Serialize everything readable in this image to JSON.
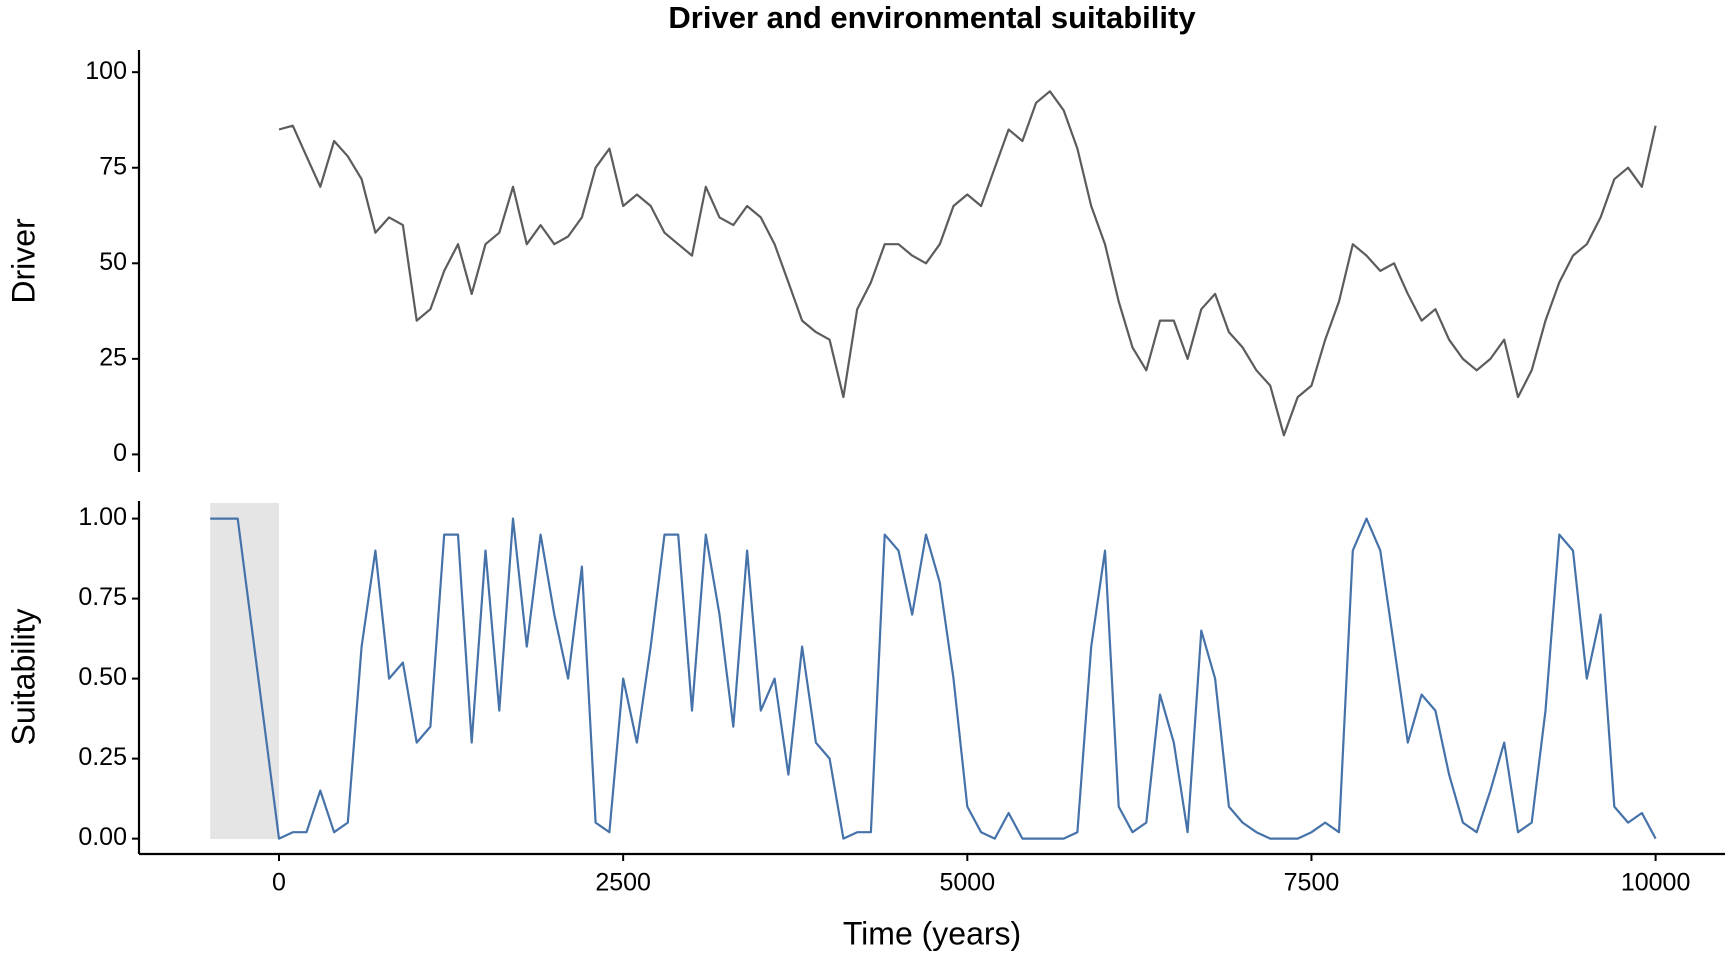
{
  "chart_data": [
    {
      "type": "line",
      "title": "Driver and environmental suitability",
      "ylabel": "Driver",
      "color": "#5c5c5c",
      "xlim": [
        -1017,
        10504
      ],
      "ylim": [
        -4.6,
        105.8
      ],
      "yticks": [
        0,
        25,
        50,
        75,
        100
      ],
      "x": [
        0,
        100,
        200,
        300,
        400,
        500,
        600,
        700,
        800,
        900,
        1000,
        1100,
        1200,
        1300,
        1400,
        1500,
        1600,
        1700,
        1800,
        1900,
        2000,
        2100,
        2200,
        2300,
        2400,
        2500,
        2600,
        2700,
        2800,
        2900,
        3000,
        3100,
        3200,
        3300,
        3400,
        3500,
        3600,
        3700,
        3800,
        3900,
        4000,
        4100,
        4200,
        4300,
        4400,
        4500,
        4600,
        4700,
        4800,
        4900,
        5000,
        5100,
        5200,
        5300,
        5400,
        5500,
        5600,
        5700,
        5800,
        5900,
        6000,
        6100,
        6200,
        6300,
        6400,
        6500,
        6600,
        6700,
        6800,
        6900,
        7000,
        7100,
        7200,
        7300,
        7400,
        7500,
        7600,
        7700,
        7800,
        7900,
        8000,
        8100,
        8200,
        8300,
        8400,
        8500,
        8600,
        8700,
        8800,
        8900,
        9000,
        9100,
        9200,
        9300,
        9400,
        9500,
        9600,
        9700,
        9800,
        9900,
        10000
      ],
      "values": [
        85,
        86,
        78,
        70,
        82,
        78,
        72,
        58,
        62,
        60,
        35,
        38,
        48,
        55,
        42,
        55,
        58,
        70,
        55,
        60,
        55,
        57,
        62,
        75,
        80,
        65,
        68,
        65,
        58,
        55,
        52,
        70,
        62,
        60,
        65,
        62,
        55,
        45,
        35,
        32,
        30,
        15,
        38,
        45,
        55,
        55,
        52,
        50,
        55,
        65,
        68,
        65,
        75,
        85,
        82,
        92,
        95,
        90,
        80,
        65,
        55,
        40,
        28,
        22,
        35,
        35,
        25,
        38,
        42,
        32,
        28,
        22,
        18,
        5,
        15,
        18,
        30,
        40,
        55,
        52,
        48,
        50,
        42,
        35,
        38,
        30,
        25,
        22,
        25,
        30,
        15,
        22,
        35,
        45,
        52,
        55,
        62,
        72,
        75,
        70,
        86
      ]
    },
    {
      "type": "line",
      "ylabel": "Suitability",
      "xlabel": "Time (years)",
      "color": "#4672aa",
      "xlim": [
        -1017,
        10504
      ],
      "ylim": [
        -0.048,
        1.055
      ],
      "xticks": [
        0,
        2500,
        5000,
        7500,
        10000
      ],
      "yticks": [
        {
          "value": 0,
          "label": "0.00"
        },
        {
          "value": 0.25,
          "label": "0.25"
        },
        {
          "value": 0.5,
          "label": "0.50"
        },
        {
          "value": 0.75,
          "label": "0.75"
        },
        {
          "value": 1,
          "label": "1.00"
        }
      ],
      "shade_x": [
        -500,
        0
      ],
      "shade_color": "#e5e5e5",
      "x": [
        -500,
        -300,
        0,
        100,
        200,
        300,
        400,
        500,
        600,
        700,
        800,
        900,
        1000,
        1100,
        1200,
        1300,
        1400,
        1500,
        1600,
        1700,
        1800,
        1900,
        2000,
        2100,
        2200,
        2300,
        2400,
        2500,
        2600,
        2700,
        2800,
        2900,
        3000,
        3100,
        3200,
        3300,
        3400,
        3500,
        3600,
        3700,
        3800,
        3900,
        4000,
        4100,
        4200,
        4300,
        4400,
        4500,
        4600,
        4700,
        4800,
        4900,
        5000,
        5100,
        5200,
        5300,
        5400,
        5500,
        5600,
        5700,
        5800,
        5900,
        6000,
        6100,
        6200,
        6300,
        6400,
        6500,
        6600,
        6700,
        6800,
        6900,
        7000,
        7100,
        7200,
        7300,
        7400,
        7500,
        7600,
        7700,
        7800,
        7900,
        8000,
        8100,
        8200,
        8300,
        8400,
        8500,
        8600,
        8700,
        8800,
        8900,
        9000,
        9100,
        9200,
        9300,
        9400,
        9500,
        9600,
        9700,
        9800,
        9900,
        10000
      ],
      "values": [
        1,
        1,
        0,
        0.02,
        0.02,
        0.15,
        0.02,
        0.05,
        0.6,
        0.9,
        0.5,
        0.55,
        0.3,
        0.35,
        0.95,
        0.95,
        0.3,
        0.9,
        0.4,
        1,
        0.6,
        0.95,
        0.7,
        0.5,
        0.85,
        0.05,
        0.02,
        0.5,
        0.3,
        0.6,
        0.95,
        0.95,
        0.4,
        0.95,
        0.7,
        0.35,
        0.9,
        0.4,
        0.5,
        0.2,
        0.6,
        0.3,
        0.25,
        0,
        0.02,
        0.02,
        0.95,
        0.9,
        0.7,
        0.95,
        0.8,
        0.5,
        0.1,
        0.02,
        0,
        0.08,
        0,
        0,
        0,
        0,
        0.02,
        0.6,
        0.9,
        0.1,
        0.02,
        0.05,
        0.45,
        0.3,
        0.02,
        0.65,
        0.5,
        0.1,
        0.05,
        0.02,
        0,
        0,
        0,
        0.02,
        0.05,
        0.02,
        0.9,
        1,
        0.9,
        0.6,
        0.3,
        0.45,
        0.4,
        0.2,
        0.05,
        0.02,
        0.15,
        0.3,
        0.02,
        0.05,
        0.4,
        0.95,
        0.9,
        0.5,
        0.7,
        0.1,
        0.05,
        0.08,
        0
      ]
    }
  ]
}
